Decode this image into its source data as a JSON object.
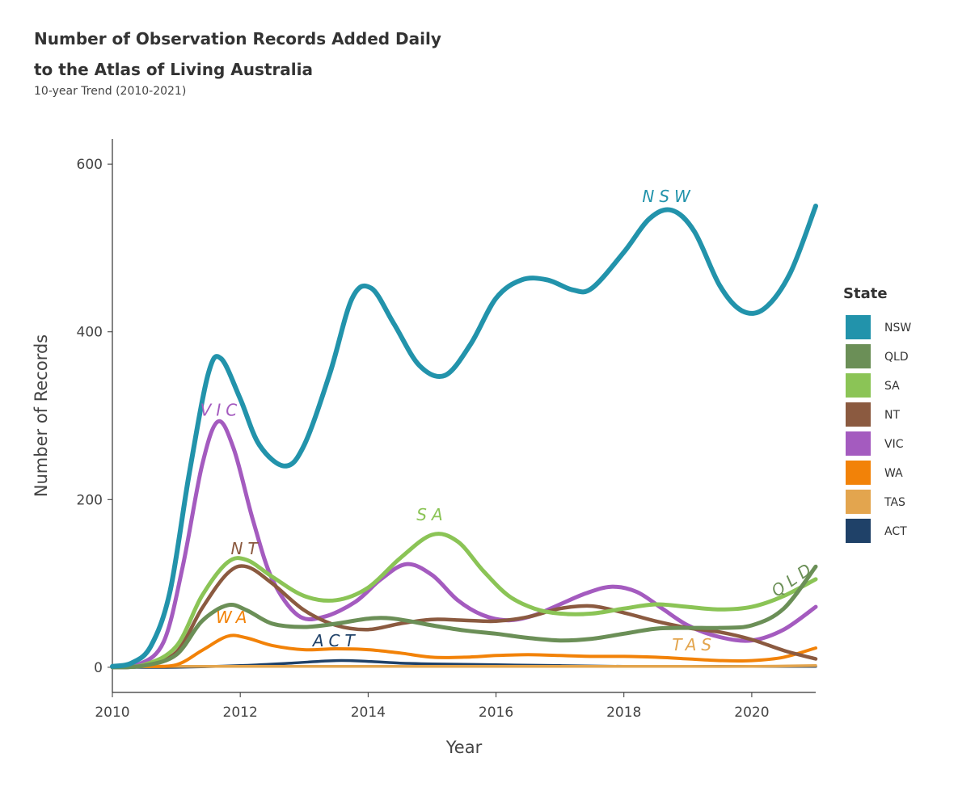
{
  "chart_data": {
    "type": "line",
    "title_line1": "Number of Observation Records Added Daily",
    "title_line2": "to the Atlas of Living Australia",
    "subtitle": "10-year Trend (2010-2021)",
    "xlabel": "Year",
    "ylabel": "Number of Records",
    "xlim": [
      2010,
      2021
    ],
    "ylim": [
      -30,
      630
    ],
    "xticks": [
      2010,
      2012,
      2014,
      2016,
      2018,
      2020
    ],
    "yticks": [
      0,
      200,
      400,
      600
    ],
    "grid": false,
    "legend_title": "State",
    "legend_position": "right",
    "series": [
      {
        "name": "NSW",
        "color": "#2293ab",
        "label": "NSW",
        "label_at": [
          18.7,
          555
        ],
        "points": [
          [
            2010,
            1
          ],
          [
            2010.3,
            5
          ],
          [
            2010.6,
            25
          ],
          [
            2010.9,
            90
          ],
          [
            2011.2,
            230
          ],
          [
            2011.5,
            350
          ],
          [
            2011.7,
            368
          ],
          [
            2012.0,
            320
          ],
          [
            2012.3,
            265
          ],
          [
            2012.7,
            240
          ],
          [
            2013.0,
            265
          ],
          [
            2013.4,
            350
          ],
          [
            2013.75,
            440
          ],
          [
            2014.05,
            452
          ],
          [
            2014.4,
            410
          ],
          [
            2014.8,
            360
          ],
          [
            2015.2,
            348
          ],
          [
            2015.6,
            385
          ],
          [
            2016.0,
            440
          ],
          [
            2016.4,
            462
          ],
          [
            2016.8,
            462
          ],
          [
            2017.2,
            450
          ],
          [
            2017.5,
            452
          ],
          [
            2018.0,
            495
          ],
          [
            2018.4,
            535
          ],
          [
            2018.75,
            545
          ],
          [
            2019.1,
            520
          ],
          [
            2019.5,
            455
          ],
          [
            2019.85,
            425
          ],
          [
            2020.2,
            428
          ],
          [
            2020.6,
            470
          ],
          [
            2021.0,
            550
          ]
        ]
      },
      {
        "name": "QLD",
        "color": "#6b8f57",
        "label": "QLD",
        "label_at": [
          20.7,
          100
        ],
        "points": [
          [
            2010,
            0
          ],
          [
            2010.5,
            2
          ],
          [
            2011.0,
            15
          ],
          [
            2011.4,
            55
          ],
          [
            2011.8,
            74
          ],
          [
            2012.1,
            68
          ],
          [
            2012.5,
            52
          ],
          [
            2013.0,
            48
          ],
          [
            2013.5,
            52
          ],
          [
            2014.0,
            58
          ],
          [
            2014.4,
            58
          ],
          [
            2015.0,
            50
          ],
          [
            2015.5,
            44
          ],
          [
            2016.0,
            40
          ],
          [
            2016.5,
            35
          ],
          [
            2017.0,
            32
          ],
          [
            2017.5,
            34
          ],
          [
            2018.0,
            40
          ],
          [
            2018.5,
            46
          ],
          [
            2019.0,
            47
          ],
          [
            2019.5,
            47
          ],
          [
            2020.0,
            50
          ],
          [
            2020.5,
            70
          ],
          [
            2021.0,
            120
          ]
        ]
      },
      {
        "name": "SA",
        "color": "#8bc456",
        "label": "SA",
        "label_at": [
          15.0,
          175
        ],
        "points": [
          [
            2010,
            0
          ],
          [
            2010.5,
            3
          ],
          [
            2011.0,
            25
          ],
          [
            2011.4,
            85
          ],
          [
            2011.8,
            125
          ],
          [
            2012.1,
            128
          ],
          [
            2012.5,
            108
          ],
          [
            2013.0,
            85
          ],
          [
            2013.5,
            80
          ],
          [
            2014.0,
            95
          ],
          [
            2014.5,
            130
          ],
          [
            2015.0,
            158
          ],
          [
            2015.4,
            150
          ],
          [
            2015.8,
            115
          ],
          [
            2016.2,
            85
          ],
          [
            2016.6,
            70
          ],
          [
            2017.0,
            64
          ],
          [
            2017.5,
            64
          ],
          [
            2018.0,
            70
          ],
          [
            2018.5,
            75
          ],
          [
            2019.0,
            72
          ],
          [
            2019.5,
            69
          ],
          [
            2020.0,
            72
          ],
          [
            2020.5,
            85
          ],
          [
            2021.0,
            105
          ]
        ]
      },
      {
        "name": "NT",
        "color": "#8b5a40",
        "label": "NT",
        "label_at": [
          12.1,
          135
        ],
        "points": [
          [
            2010,
            0
          ],
          [
            2010.5,
            2
          ],
          [
            2011.0,
            18
          ],
          [
            2011.4,
            70
          ],
          [
            2011.8,
            112
          ],
          [
            2012.1,
            120
          ],
          [
            2012.5,
            100
          ],
          [
            2013.0,
            68
          ],
          [
            2013.5,
            50
          ],
          [
            2014.0,
            45
          ],
          [
            2014.5,
            52
          ],
          [
            2015.0,
            57
          ],
          [
            2015.5,
            56
          ],
          [
            2016.0,
            55
          ],
          [
            2016.5,
            60
          ],
          [
            2017.0,
            70
          ],
          [
            2017.5,
            73
          ],
          [
            2018.0,
            65
          ],
          [
            2018.5,
            55
          ],
          [
            2019.0,
            47
          ],
          [
            2019.5,
            42
          ],
          [
            2020.0,
            33
          ],
          [
            2020.5,
            20
          ],
          [
            2021.0,
            10
          ]
        ]
      },
      {
        "name": "VIC",
        "color": "#a45bbf",
        "label": "VIC",
        "label_at": [
          11.7,
          300
        ],
        "points": [
          [
            2010,
            0
          ],
          [
            2010.4,
            3
          ],
          [
            2010.8,
            30
          ],
          [
            2011.1,
            120
          ],
          [
            2011.4,
            240
          ],
          [
            2011.65,
            293
          ],
          [
            2011.9,
            260
          ],
          [
            2012.2,
            175
          ],
          [
            2012.5,
            105
          ],
          [
            2012.9,
            62
          ],
          [
            2013.3,
            60
          ],
          [
            2013.8,
            78
          ],
          [
            2014.2,
            105
          ],
          [
            2014.6,
            123
          ],
          [
            2015.0,
            110
          ],
          [
            2015.4,
            80
          ],
          [
            2015.8,
            62
          ],
          [
            2016.2,
            56
          ],
          [
            2016.6,
            62
          ],
          [
            2017.0,
            75
          ],
          [
            2017.4,
            88
          ],
          [
            2017.8,
            96
          ],
          [
            2018.2,
            90
          ],
          [
            2018.6,
            70
          ],
          [
            2019.0,
            50
          ],
          [
            2019.5,
            36
          ],
          [
            2020.0,
            32
          ],
          [
            2020.5,
            45
          ],
          [
            2021.0,
            72
          ]
        ]
      },
      {
        "name": "WA",
        "color": "#f28208",
        "label": "WA",
        "label_at": [
          11.9,
          53
        ],
        "points": [
          [
            2010,
            0
          ],
          [
            2010.5,
            1
          ],
          [
            2011.0,
            3
          ],
          [
            2011.4,
            20
          ],
          [
            2011.8,
            37
          ],
          [
            2012.1,
            35
          ],
          [
            2012.5,
            26
          ],
          [
            2013.0,
            21
          ],
          [
            2013.5,
            22
          ],
          [
            2014.0,
            21
          ],
          [
            2014.5,
            17
          ],
          [
            2015.0,
            12
          ],
          [
            2015.5,
            12
          ],
          [
            2016.0,
            14
          ],
          [
            2016.5,
            15
          ],
          [
            2017.0,
            14
          ],
          [
            2017.5,
            13
          ],
          [
            2018.0,
            13
          ],
          [
            2018.5,
            12
          ],
          [
            2019.0,
            10
          ],
          [
            2019.5,
            8
          ],
          [
            2020.0,
            8
          ],
          [
            2020.5,
            12
          ],
          [
            2021.0,
            23
          ]
        ]
      },
      {
        "name": "TAS",
        "color": "#e3a54e",
        "label": "TAS",
        "label_at": [
          19.1,
          20
        ],
        "points": [
          [
            2010,
            0
          ],
          [
            2011.0,
            1
          ],
          [
            2012.0,
            1
          ],
          [
            2013.0,
            1
          ],
          [
            2014.0,
            1
          ],
          [
            2015.0,
            1
          ],
          [
            2016.0,
            1
          ],
          [
            2017.0,
            1
          ],
          [
            2018.0,
            1
          ],
          [
            2019.0,
            1
          ],
          [
            2020.0,
            1
          ],
          [
            2021.0,
            2
          ]
        ]
      },
      {
        "name": "ACT",
        "color": "#1f4168",
        "label": "ACT",
        "label_at": [
          13.5,
          25
        ],
        "points": [
          [
            2010,
            0
          ],
          [
            2011.0,
            0
          ],
          [
            2012.0,
            2
          ],
          [
            2012.8,
            5
          ],
          [
            2013.5,
            8
          ],
          [
            2014.0,
            7
          ],
          [
            2014.5,
            5
          ],
          [
            2015.0,
            4
          ],
          [
            2016.0,
            3
          ],
          [
            2017.0,
            2
          ],
          [
            2018.0,
            1
          ],
          [
            2019.0,
            1
          ],
          [
            2020.0,
            1
          ],
          [
            2021.0,
            1
          ]
        ]
      }
    ]
  }
}
